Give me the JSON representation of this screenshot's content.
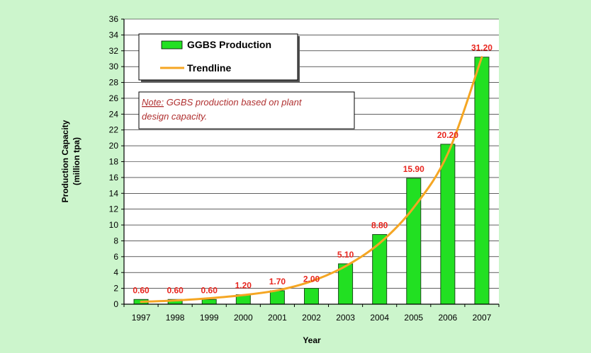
{
  "page": {
    "background": "#ccf5cc",
    "plot_background": "#ffffff"
  },
  "legend": {
    "bar_label": "GGBS Production",
    "line_label": "Trendline",
    "placement": "top-left"
  },
  "note": {
    "prefix": "Note:",
    "line1_rest": " GGBS production based on plant",
    "line2": "design capacity."
  },
  "colors": {
    "bar_fill": "#22e022",
    "bar_stroke": "#1a4d1a",
    "trend": "#f5a623",
    "data_label": "#e8261f",
    "note_text": "#b03030",
    "axis": "#000000",
    "grid": "#000000"
  },
  "chart_data": {
    "type": "bar",
    "title": "",
    "xlabel": "Year",
    "ylabel": "Production Capacity",
    "ylabel_unit": "(million tpa)",
    "ylim": [
      0,
      36
    ],
    "y_ticks": [
      "0",
      "2",
      "4",
      "6",
      "8",
      "10",
      "12",
      "14",
      "16",
      "18",
      "20",
      "22",
      "24",
      "26",
      "28",
      "30",
      "32",
      "34",
      "36"
    ],
    "grid": true,
    "categories": [
      "1997",
      "1998",
      "1999",
      "2000",
      "2001",
      "2002",
      "2003",
      "2004",
      "2005",
      "2006",
      "2007"
    ],
    "series": [
      {
        "name": "GGBS Production",
        "type": "bar",
        "values": [
          0.6,
          0.6,
          0.6,
          1.2,
          1.7,
          2.0,
          5.1,
          8.8,
          15.9,
          20.2,
          31.2
        ],
        "labels": [
          "0.60",
          "0.60",
          "0.60",
          "1.20",
          "1.70",
          "2.00",
          "5.10",
          "8.80",
          "15.90",
          "20.20",
          "31.20"
        ]
      },
      {
        "name": "Trendline",
        "type": "line",
        "values": [
          0.3,
          0.47,
          0.75,
          1.15,
          1.75,
          2.9,
          4.8,
          7.7,
          12.2,
          19.0,
          31.2
        ]
      }
    ]
  }
}
